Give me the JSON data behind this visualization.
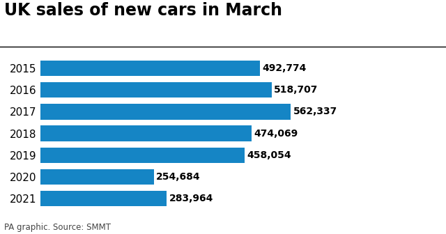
{
  "title": "UK sales of new cars in March",
  "years": [
    "2015",
    "2016",
    "2017",
    "2018",
    "2019",
    "2020",
    "2021"
  ],
  "values": [
    492774,
    518707,
    562337,
    474069,
    458054,
    254684,
    283964
  ],
  "labels": [
    "492,774",
    "518,707",
    "562,337",
    "474,069",
    "458,054",
    "254,684",
    "283,964"
  ],
  "bar_color": "#1585c5",
  "background_color": "#ffffff",
  "title_fontsize": 17,
  "label_fontsize": 10,
  "year_fontsize": 11,
  "footer": "PA graphic. Source: SMMT",
  "footer_fontsize": 8.5,
  "xlim": [
    0,
    700000
  ],
  "bar_height": 0.72
}
